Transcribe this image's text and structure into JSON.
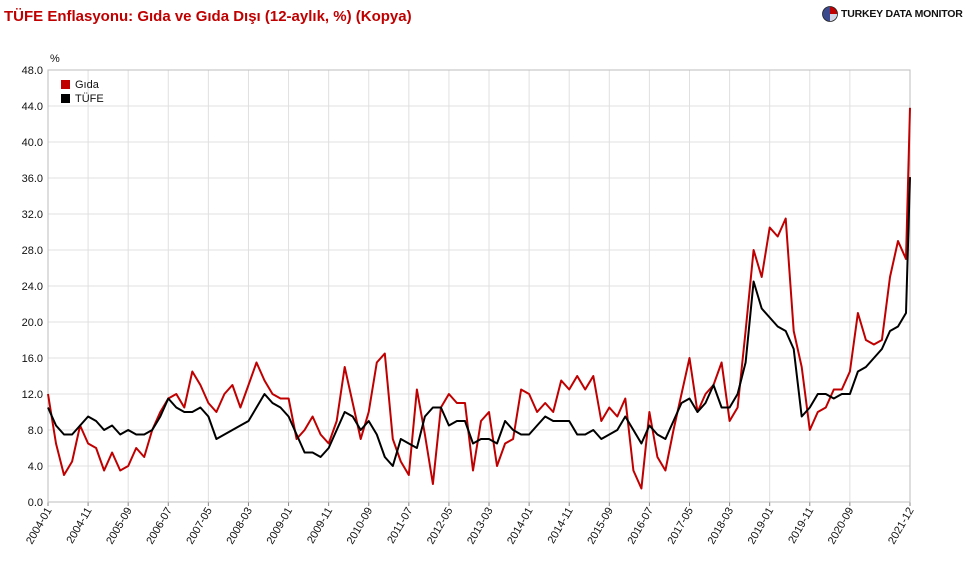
{
  "header": {
    "brand_name": "TURKEY DATA MONITOR",
    "brand_icon": "globe-logo-icon"
  },
  "colors": {
    "gida": "#c00000",
    "tufe": "#000000",
    "grid": "#e0e0e0"
  },
  "chart_data": {
    "type": "line",
    "title": "TÜFE Enflasyonu: Gıda ve Gıda Dışı (12-aylık, %) (Kopya)",
    "ylabel": "%",
    "xlabel": "",
    "ylim": [
      0,
      48
    ],
    "yticks": [
      "0.0",
      "4.0",
      "8.0",
      "12.0",
      "16.0",
      "20.0",
      "24.0",
      "28.0",
      "32.0",
      "36.0",
      "40.0",
      "44.0",
      "48.0"
    ],
    "xlim": [
      "2004-01",
      "2021-12"
    ],
    "xticks": [
      "2004-01",
      "2004-11",
      "2005-09",
      "2006-07",
      "2007-05",
      "2008-03",
      "2009-01",
      "2009-11",
      "2010-09",
      "2011-07",
      "2012-05",
      "2013-03",
      "2014-01",
      "2014-11",
      "2015-09",
      "2016-07",
      "2017-05",
      "2018-03",
      "2019-01",
      "2019-11",
      "2020-09",
      "2021-12"
    ],
    "grid": true,
    "legend_position": "top-left",
    "series": [
      {
        "name": "Gıda",
        "points": [
          [
            "2004-01",
            12.0
          ],
          [
            "2004-03",
            6.5
          ],
          [
            "2004-05",
            3.0
          ],
          [
            "2004-07",
            4.5
          ],
          [
            "2004-09",
            8.5
          ],
          [
            "2004-11",
            6.5
          ],
          [
            "2005-01",
            6.0
          ],
          [
            "2005-03",
            3.5
          ],
          [
            "2005-05",
            5.5
          ],
          [
            "2005-07",
            3.5
          ],
          [
            "2005-09",
            4.0
          ],
          [
            "2005-11",
            6.0
          ],
          [
            "2006-01",
            5.0
          ],
          [
            "2006-03",
            8.0
          ],
          [
            "2006-05",
            10.0
          ],
          [
            "2006-07",
            11.5
          ],
          [
            "2006-09",
            12.0
          ],
          [
            "2006-11",
            10.5
          ],
          [
            "2007-01",
            14.5
          ],
          [
            "2007-03",
            13.0
          ],
          [
            "2007-05",
            11.0
          ],
          [
            "2007-07",
            10.0
          ],
          [
            "2007-09",
            12.0
          ],
          [
            "2007-11",
            13.0
          ],
          [
            "2008-01",
            10.5
          ],
          [
            "2008-03",
            13.0
          ],
          [
            "2008-05",
            15.5
          ],
          [
            "2008-07",
            13.5
          ],
          [
            "2008-09",
            12.0
          ],
          [
            "2008-11",
            11.5
          ],
          [
            "2009-01",
            11.5
          ],
          [
            "2009-03",
            7.0
          ],
          [
            "2009-05",
            8.0
          ],
          [
            "2009-07",
            9.5
          ],
          [
            "2009-09",
            7.5
          ],
          [
            "2009-11",
            6.5
          ],
          [
            "2010-01",
            9.0
          ],
          [
            "2010-03",
            15.0
          ],
          [
            "2010-05",
            11.0
          ],
          [
            "2010-07",
            7.0
          ],
          [
            "2010-09",
            10.0
          ],
          [
            "2010-11",
            15.5
          ],
          [
            "2011-01",
            16.5
          ],
          [
            "2011-03",
            7.0
          ],
          [
            "2011-05",
            4.5
          ],
          [
            "2011-07",
            3.0
          ],
          [
            "2011-09",
            12.5
          ],
          [
            "2011-11",
            7.5
          ],
          [
            "2012-01",
            2.0
          ],
          [
            "2012-03",
            10.5
          ],
          [
            "2012-05",
            12.0
          ],
          [
            "2012-07",
            11.0
          ],
          [
            "2012-09",
            11.0
          ],
          [
            "2012-11",
            3.5
          ],
          [
            "2013-01",
            9.0
          ],
          [
            "2013-03",
            10.0
          ],
          [
            "2013-05",
            4.0
          ],
          [
            "2013-07",
            6.5
          ],
          [
            "2013-09",
            7.0
          ],
          [
            "2013-11",
            12.5
          ],
          [
            "2014-01",
            12.0
          ],
          [
            "2014-03",
            10.0
          ],
          [
            "2014-05",
            11.0
          ],
          [
            "2014-07",
            10.0
          ],
          [
            "2014-09",
            13.5
          ],
          [
            "2014-11",
            12.5
          ],
          [
            "2015-01",
            14.0
          ],
          [
            "2015-03",
            12.5
          ],
          [
            "2015-05",
            14.0
          ],
          [
            "2015-07",
            9.0
          ],
          [
            "2015-09",
            10.5
          ],
          [
            "2015-11",
            9.5
          ],
          [
            "2016-01",
            11.5
          ],
          [
            "2016-03",
            3.5
          ],
          [
            "2016-05",
            1.5
          ],
          [
            "2016-07",
            10.0
          ],
          [
            "2016-09",
            5.0
          ],
          [
            "2016-11",
            3.5
          ],
          [
            "2017-01",
            8.0
          ],
          [
            "2017-03",
            12.0
          ],
          [
            "2017-05",
            16.0
          ],
          [
            "2017-07",
            10.0
          ],
          [
            "2017-09",
            12.0
          ],
          [
            "2017-11",
            13.0
          ],
          [
            "2018-01",
            15.5
          ],
          [
            "2018-03",
            9.0
          ],
          [
            "2018-05",
            10.5
          ],
          [
            "2018-07",
            19.0
          ],
          [
            "2018-09",
            28.0
          ],
          [
            "2018-11",
            25.0
          ],
          [
            "2019-01",
            30.5
          ],
          [
            "2019-03",
            29.5
          ],
          [
            "2019-05",
            31.5
          ],
          [
            "2019-07",
            19.0
          ],
          [
            "2019-09",
            15.0
          ],
          [
            "2019-11",
            8.0
          ],
          [
            "2020-01",
            10.0
          ],
          [
            "2020-03",
            10.5
          ],
          [
            "2020-05",
            12.5
          ],
          [
            "2020-07",
            12.5
          ],
          [
            "2020-09",
            14.5
          ],
          [
            "2020-11",
            21.0
          ],
          [
            "2021-01",
            18.0
          ],
          [
            "2021-03",
            17.5
          ],
          [
            "2021-05",
            18.0
          ],
          [
            "2021-07",
            25.0
          ],
          [
            "2021-09",
            29.0
          ],
          [
            "2021-11",
            27.0
          ],
          [
            "2021-12",
            43.8
          ]
        ]
      },
      {
        "name": "TÜFE",
        "points": [
          [
            "2004-01",
            10.5
          ],
          [
            "2004-03",
            8.5
          ],
          [
            "2004-05",
            7.5
          ],
          [
            "2004-07",
            7.5
          ],
          [
            "2004-09",
            8.5
          ],
          [
            "2004-11",
            9.5
          ],
          [
            "2005-01",
            9.0
          ],
          [
            "2005-03",
            8.0
          ],
          [
            "2005-05",
            8.5
          ],
          [
            "2005-07",
            7.5
          ],
          [
            "2005-09",
            8.0
          ],
          [
            "2005-11",
            7.5
          ],
          [
            "2006-01",
            7.5
          ],
          [
            "2006-03",
            8.0
          ],
          [
            "2006-05",
            9.5
          ],
          [
            "2006-07",
            11.5
          ],
          [
            "2006-09",
            10.5
          ],
          [
            "2006-11",
            10.0
          ],
          [
            "2007-01",
            10.0
          ],
          [
            "2007-03",
            10.5
          ],
          [
            "2007-05",
            9.5
          ],
          [
            "2007-07",
            7.0
          ],
          [
            "2007-09",
            7.5
          ],
          [
            "2007-11",
            8.0
          ],
          [
            "2008-01",
            8.5
          ],
          [
            "2008-03",
            9.0
          ],
          [
            "2008-05",
            10.5
          ],
          [
            "2008-07",
            12.0
          ],
          [
            "2008-09",
            11.0
          ],
          [
            "2008-11",
            10.5
          ],
          [
            "2009-01",
            9.5
          ],
          [
            "2009-03",
            7.5
          ],
          [
            "2009-05",
            5.5
          ],
          [
            "2009-07",
            5.5
          ],
          [
            "2009-09",
            5.0
          ],
          [
            "2009-11",
            6.0
          ],
          [
            "2010-01",
            8.0
          ],
          [
            "2010-03",
            10.0
          ],
          [
            "2010-05",
            9.5
          ],
          [
            "2010-07",
            8.0
          ],
          [
            "2010-09",
            9.0
          ],
          [
            "2010-11",
            7.5
          ],
          [
            "2011-01",
            5.0
          ],
          [
            "2011-03",
            4.0
          ],
          [
            "2011-05",
            7.0
          ],
          [
            "2011-07",
            6.5
          ],
          [
            "2011-09",
            6.0
          ],
          [
            "2011-11",
            9.5
          ],
          [
            "2012-01",
            10.5
          ],
          [
            "2012-03",
            10.5
          ],
          [
            "2012-05",
            8.5
          ],
          [
            "2012-07",
            9.0
          ],
          [
            "2012-09",
            9.0
          ],
          [
            "2012-11",
            6.5
          ],
          [
            "2013-01",
            7.0
          ],
          [
            "2013-03",
            7.0
          ],
          [
            "2013-05",
            6.5
          ],
          [
            "2013-07",
            9.0
          ],
          [
            "2013-09",
            8.0
          ],
          [
            "2013-11",
            7.5
          ],
          [
            "2014-01",
            7.5
          ],
          [
            "2014-03",
            8.5
          ],
          [
            "2014-05",
            9.5
          ],
          [
            "2014-07",
            9.0
          ],
          [
            "2014-09",
            9.0
          ],
          [
            "2014-11",
            9.0
          ],
          [
            "2015-01",
            7.5
          ],
          [
            "2015-03",
            7.5
          ],
          [
            "2015-05",
            8.0
          ],
          [
            "2015-07",
            7.0
          ],
          [
            "2015-09",
            7.5
          ],
          [
            "2015-11",
            8.0
          ],
          [
            "2016-01",
            9.5
          ],
          [
            "2016-03",
            8.0
          ],
          [
            "2016-05",
            6.5
          ],
          [
            "2016-07",
            8.5
          ],
          [
            "2016-09",
            7.5
          ],
          [
            "2016-11",
            7.0
          ],
          [
            "2017-01",
            9.0
          ],
          [
            "2017-03",
            11.0
          ],
          [
            "2017-05",
            11.5
          ],
          [
            "2017-07",
            10.0
          ],
          [
            "2017-09",
            11.0
          ],
          [
            "2017-11",
            13.0
          ],
          [
            "2018-01",
            10.5
          ],
          [
            "2018-03",
            10.5
          ],
          [
            "2018-05",
            12.0
          ],
          [
            "2018-07",
            15.5
          ],
          [
            "2018-09",
            24.5
          ],
          [
            "2018-11",
            21.5
          ],
          [
            "2019-01",
            20.5
          ],
          [
            "2019-03",
            19.5
          ],
          [
            "2019-05",
            19.0
          ],
          [
            "2019-07",
            17.0
          ],
          [
            "2019-09",
            9.5
          ],
          [
            "2019-11",
            10.5
          ],
          [
            "2020-01",
            12.0
          ],
          [
            "2020-03",
            12.0
          ],
          [
            "2020-05",
            11.5
          ],
          [
            "2020-07",
            12.0
          ],
          [
            "2020-09",
            12.0
          ],
          [
            "2020-11",
            14.5
          ],
          [
            "2021-01",
            15.0
          ],
          [
            "2021-03",
            16.0
          ],
          [
            "2021-05",
            17.0
          ],
          [
            "2021-07",
            19.0
          ],
          [
            "2021-09",
            19.5
          ],
          [
            "2021-11",
            21.0
          ],
          [
            "2021-12",
            36.1
          ]
        ]
      }
    ]
  }
}
